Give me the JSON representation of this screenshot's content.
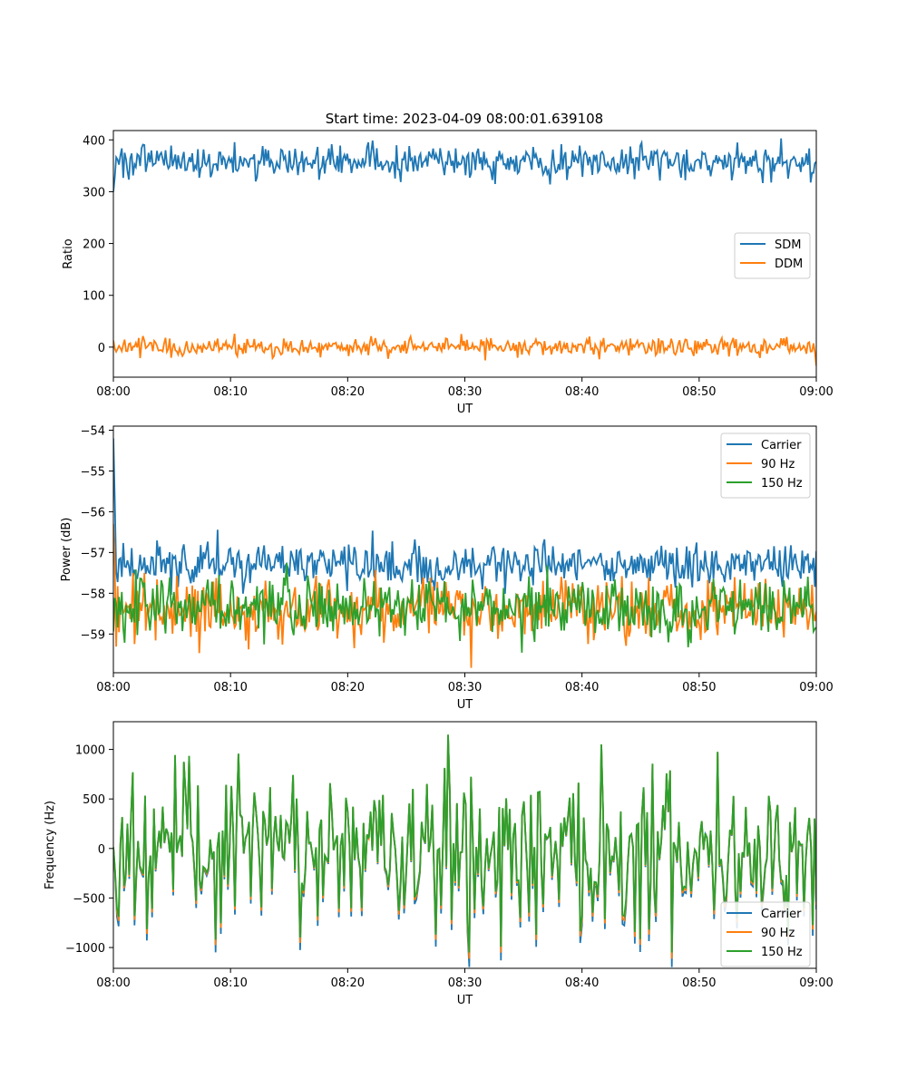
{
  "figure_title": "Start time: 2023-04-09 08:00:01.639108",
  "chart_data": [
    {
      "type": "line",
      "title": "Start time: 2023-04-09 08:00:01.639108",
      "xlabel": "UT",
      "ylabel": "Ratio",
      "x_ticks": [
        "08:00",
        "08:10",
        "08:20",
        "08:30",
        "08:40",
        "08:50",
        "09:00"
      ],
      "xlim_minutes": [
        0,
        60
      ],
      "y_ticks": [
        0,
        100,
        200,
        300,
        400
      ],
      "ylim": [
        -58,
        418
      ],
      "legend_position": "center-right",
      "grid": false,
      "series": [
        {
          "name": "SDM",
          "color": "#1f77b4",
          "mean": 358,
          "start": 300,
          "noise": 16,
          "samples": 500
        },
        {
          "name": "DDM",
          "color": "#ff7f0e",
          "mean": 0,
          "end": -36,
          "noise": 9,
          "samples": 500
        }
      ]
    },
    {
      "type": "line",
      "title": "",
      "xlabel": "UT",
      "ylabel": "Power (dB)",
      "x_ticks": [
        "08:00",
        "08:10",
        "08:20",
        "08:30",
        "08:40",
        "08:50",
        "09:00"
      ],
      "xlim_minutes": [
        0,
        60
      ],
      "y_ticks": [
        -59,
        -58,
        -57,
        -56,
        -55,
        -54
      ],
      "ylim": [
        -59.95,
        -53.9
      ],
      "legend_position": "top-right",
      "grid": false,
      "series": [
        {
          "name": "Carrier",
          "color": "#1f77b4",
          "mean": -57.3,
          "start": -54.2,
          "noise": 0.28,
          "samples": 500
        },
        {
          "name": "90 Hz",
          "color": "#ff7f0e",
          "mean": -58.4,
          "start": -56.3,
          "noise": 0.35,
          "samples": 500
        },
        {
          "name": "150 Hz",
          "color": "#2ca02c",
          "mean": -58.35,
          "noise": 0.38,
          "samples": 500
        }
      ]
    },
    {
      "type": "line",
      "title": "",
      "xlabel": "UT",
      "ylabel": "Frequency (Hz)",
      "x_ticks": [
        "08:00",
        "08:10",
        "08:20",
        "08:30",
        "08:40",
        "08:50",
        "09:00"
      ],
      "xlim_minutes": [
        0,
        60
      ],
      "y_ticks": [
        -1000,
        -500,
        0,
        500,
        1000
      ],
      "ylim": [
        -1210,
        1280
      ],
      "legend_position": "bottom-right",
      "grid": false,
      "series": [
        {
          "name": "Carrier",
          "color": "#1f77b4",
          "mean": 0,
          "noise": 420,
          "offset": -70,
          "samples": 400
        },
        {
          "name": "90 Hz",
          "color": "#ff7f0e",
          "mean": 0,
          "noise": 420,
          "offset": -30,
          "samples": 400
        },
        {
          "name": "150 Hz",
          "color": "#2ca02c",
          "mean": 0,
          "noise": 420,
          "offset": 0,
          "samples": 400
        }
      ]
    }
  ]
}
